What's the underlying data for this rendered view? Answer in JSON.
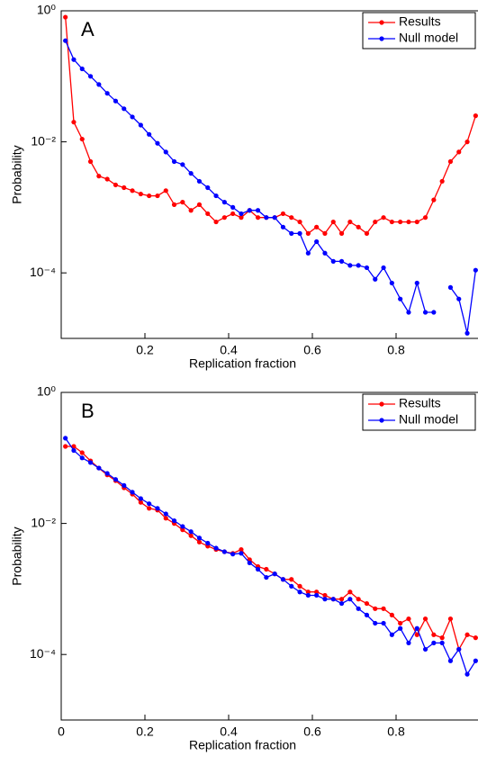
{
  "chart_data": [
    {
      "type": "line",
      "annotation": "A",
      "ylabel": "Probability",
      "xlabel": "Replication fraction",
      "log_y": true,
      "legend": "upper right",
      "xlim": [
        0,
        1
      ],
      "ylim": [
        1e-05,
        1
      ],
      "xticks": [
        0.2,
        0.4,
        0.6,
        0.8
      ],
      "yticks": [
        {
          "value": 1,
          "label": "10⁰"
        },
        {
          "value": 0.01,
          "label": "10⁻²"
        },
        {
          "value": 0.0001,
          "label": "10⁻⁴"
        }
      ],
      "x": [
        0.01,
        0.03,
        0.05,
        0.07,
        0.09,
        0.11,
        0.13,
        0.15,
        0.17,
        0.19,
        0.21,
        0.23,
        0.25,
        0.27,
        0.29,
        0.31,
        0.33,
        0.35,
        0.37,
        0.39,
        0.41,
        0.43,
        0.45,
        0.47,
        0.49,
        0.51,
        0.53,
        0.55,
        0.57,
        0.59,
        0.61,
        0.63,
        0.65,
        0.67,
        0.69,
        0.71,
        0.73,
        0.75,
        0.77,
        0.79,
        0.81,
        0.83,
        0.85,
        0.87,
        0.89,
        0.91,
        0.93,
        0.95,
        0.97,
        0.99
      ],
      "series": [
        {
          "name": "Results",
          "color": "#ff0000",
          "values": [
            0.8,
            0.02,
            0.011,
            0.005,
            0.003,
            0.0027,
            0.0022,
            0.002,
            0.0018,
            0.0016,
            0.0015,
            0.0015,
            0.0018,
            0.0011,
            0.0012,
            0.0009,
            0.0011,
            0.0008,
            0.0006,
            0.0007,
            0.0008,
            0.0007,
            0.0009,
            0.0007,
            0.0007,
            0.0007,
            0.0008,
            0.0007,
            0.0006,
            0.0004,
            0.0005,
            0.0004,
            0.0006,
            0.0004,
            0.0006,
            0.0005,
            0.0004,
            0.0006,
            0.0007,
            0.0006,
            0.0006,
            0.0006,
            0.0006,
            0.0007,
            0.0013,
            0.0025,
            0.005,
            0.007,
            0.01,
            0.025
          ]
        },
        {
          "name": "Null model",
          "color": "#0000ff",
          "values": [
            0.35,
            0.18,
            0.13,
            0.1,
            0.075,
            0.055,
            0.042,
            0.032,
            0.024,
            0.018,
            0.013,
            0.0095,
            0.007,
            0.005,
            0.0045,
            0.0033,
            0.0025,
            0.002,
            0.0015,
            0.0012,
            0.001,
            0.0008,
            0.0009,
            0.0009,
            0.0007,
            0.0007,
            0.0005,
            0.0004,
            0.0004,
            0.0002,
            0.0003,
            0.0002,
            0.00015,
            0.00015,
            0.00013,
            0.00013,
            0.00012,
            8e-05,
            0.00012,
            7e-05,
            4e-05,
            2.5e-05,
            7e-05,
            2.5e-05,
            2.5e-05,
            null,
            6e-05,
            4e-05,
            1.2e-05,
            0.00011
          ]
        }
      ]
    },
    {
      "type": "line",
      "annotation": "B",
      "ylabel": "Probability",
      "xlabel": "Replication fraction",
      "log_y": true,
      "legend": "upper right",
      "xlim": [
        0,
        1
      ],
      "ylim": [
        1e-05,
        1
      ],
      "xticks": [
        0,
        0.2,
        0.4,
        0.6,
        0.8
      ],
      "yticks": [
        {
          "value": 1,
          "label": "10⁰"
        },
        {
          "value": 0.01,
          "label": "10⁻²"
        },
        {
          "value": 0.0001,
          "label": "10⁻⁴"
        }
      ],
      "x": [
        0.01,
        0.03,
        0.05,
        0.07,
        0.09,
        0.11,
        0.13,
        0.15,
        0.17,
        0.19,
        0.21,
        0.23,
        0.25,
        0.27,
        0.29,
        0.31,
        0.33,
        0.35,
        0.37,
        0.39,
        0.41,
        0.43,
        0.45,
        0.47,
        0.49,
        0.51,
        0.53,
        0.55,
        0.57,
        0.59,
        0.61,
        0.63,
        0.65,
        0.67,
        0.69,
        0.71,
        0.73,
        0.75,
        0.77,
        0.79,
        0.81,
        0.83,
        0.85,
        0.87,
        0.89,
        0.91,
        0.93,
        0.95,
        0.97,
        0.99
      ],
      "series": [
        {
          "name": "Results",
          "color": "#ff0000",
          "values": [
            0.15,
            0.15,
            0.12,
            0.09,
            0.07,
            0.055,
            0.045,
            0.035,
            0.028,
            0.021,
            0.017,
            0.016,
            0.012,
            0.01,
            0.008,
            0.0065,
            0.0052,
            0.0045,
            0.004,
            0.0037,
            0.0035,
            0.004,
            0.0028,
            0.0022,
            0.002,
            0.0017,
            0.0014,
            0.0014,
            0.0011,
            0.0009,
            0.0009,
            0.0008,
            0.0007,
            0.0007,
            0.0009,
            0.0007,
            0.0006,
            0.0005,
            0.0005,
            0.0004,
            0.0003,
            0.00035,
            0.0002,
            0.00035,
            0.0002,
            0.00018,
            0.00035,
            0.00012,
            0.0002,
            0.00018
          ]
        },
        {
          "name": "Null model",
          "color": "#0000ff",
          "values": [
            0.2,
            0.13,
            0.1,
            0.085,
            0.07,
            0.058,
            0.047,
            0.038,
            0.03,
            0.024,
            0.02,
            0.017,
            0.014,
            0.011,
            0.009,
            0.0075,
            0.006,
            0.005,
            0.0042,
            0.0037,
            0.0034,
            0.0035,
            0.0025,
            0.002,
            0.0015,
            0.0017,
            0.0014,
            0.0011,
            0.0009,
            0.0008,
            0.0008,
            0.0007,
            0.0007,
            0.0006,
            0.0007,
            0.0005,
            0.0004,
            0.0003,
            0.0003,
            0.0002,
            0.00025,
            0.00015,
            0.00025,
            0.00012,
            0.00015,
            0.00015,
            8e-05,
            0.00012,
            5e-05,
            8e-05
          ]
        }
      ]
    }
  ]
}
